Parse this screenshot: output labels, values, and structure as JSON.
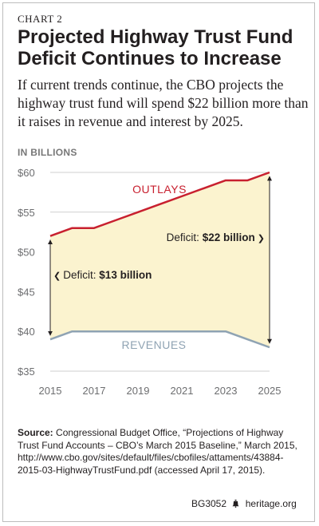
{
  "header": {
    "chart_number": "CHART 2",
    "title": "Projected Highway Trust Fund Deficit Continues to Increase",
    "subtitle": "If current trends continue, the CBO projects the highway trust fund will spend $22 billion more than it raises in revenue and interest by 2025."
  },
  "unit_label": "IN BILLIONS",
  "chart_data": {
    "type": "line",
    "x": [
      2015,
      2016,
      2017,
      2018,
      2019,
      2020,
      2021,
      2022,
      2023,
      2024,
      2025
    ],
    "series": [
      {
        "name": "OUTLAYS",
        "values": [
          52,
          53,
          53,
          54,
          55,
          56,
          57,
          58,
          59,
          59,
          60
        ],
        "color": "#c8202f"
      },
      {
        "name": "REVENUES",
        "values": [
          39,
          40,
          40,
          40,
          40,
          40,
          40,
          40,
          40,
          39,
          38
        ],
        "color": "#8fa3b3"
      }
    ],
    "fill_color": "#fbf3cf",
    "xticks": [
      "2015",
      "2017",
      "2019",
      "2021",
      "2023",
      "2025"
    ],
    "xtick_values": [
      2015,
      2017,
      2019,
      2021,
      2023,
      2025
    ],
    "yticks": [
      "$35",
      "$40",
      "$45",
      "$50",
      "$55",
      "$60"
    ],
    "ytick_values": [
      35,
      40,
      45,
      50,
      55,
      60
    ],
    "ylim": [
      35,
      60
    ],
    "xlim": [
      2015,
      2025
    ],
    "grid": true,
    "annotations": [
      {
        "prefix": "Deficit: ",
        "value": "$13 billion",
        "arrow": "❮",
        "year": 2015
      },
      {
        "prefix": "Deficit: ",
        "value": "$22 billion",
        "arrow": "❯",
        "year": 2025
      }
    ]
  },
  "source": {
    "label": "Source:",
    "text": " Congressional Budget Office, “Projections of Highway Trust Fund Accounts – CBO’s March 2015 Baseline,” March 2015, http://www.cbo.gov/sites/default/files/cbofiles/attaments/43884-2015-03-HighwayTrustFund.pdf (accessed April 17, 2015)."
  },
  "footer": {
    "code": "BG3052",
    "icon": "liberty-bell-icon",
    "site": "heritage.org"
  }
}
